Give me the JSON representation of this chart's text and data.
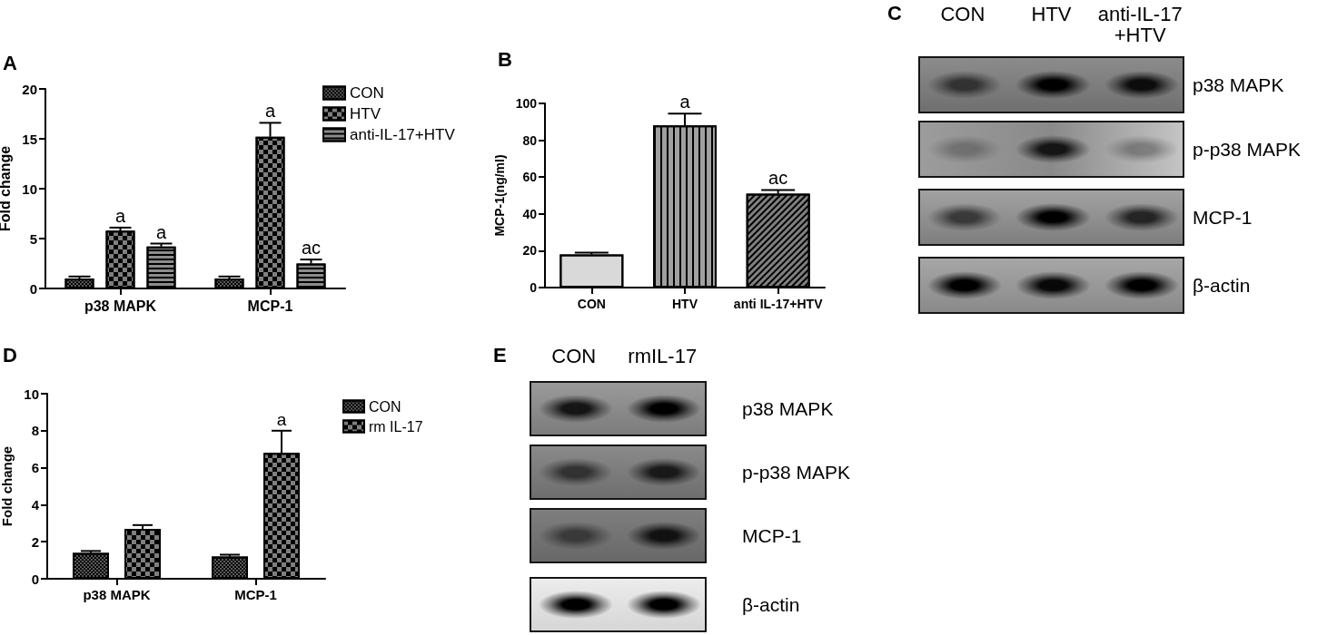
{
  "chart_data": [
    {
      "type": "bar",
      "title": "A",
      "ylabel": "Fold change",
      "categories": [
        "p38 MAPK",
        "MCP-1"
      ],
      "series": [
        {
          "name": "CON",
          "color": "#5a5a5a",
          "values": [
            1.0,
            1.0
          ],
          "errors": [
            0.2,
            0.2
          ]
        },
        {
          "name": "HTV",
          "color": "#7f7f7f",
          "values": [
            5.8,
            15.2
          ],
          "errors": [
            0.3,
            1.4
          ],
          "value_labels": [
            "a",
            "a"
          ]
        },
        {
          "name": "anti-IL-17+HTV",
          "color": "#8c8c8c",
          "values": [
            4.2,
            2.5
          ],
          "errors": [
            0.3,
            0.4
          ],
          "value_labels": [
            "a",
            "ac"
          ]
        }
      ],
      "ylim": [
        0,
        20
      ],
      "yticks": [
        0,
        5,
        10,
        15,
        20
      ],
      "grid": false,
      "legend": "top right"
    },
    {
      "type": "bar",
      "title": "B",
      "ylabel": "MCP-1(ng/ml)",
      "categories": [
        "CON",
        "HTV",
        "anti IL-17+HTV"
      ],
      "values": [
        18,
        88,
        51
      ],
      "errors": [
        1,
        6.5,
        2
      ],
      "colors": [
        "#d9d9d9",
        "#a0a0a0",
        "#808080"
      ],
      "value_labels": [
        null,
        "a",
        "ac"
      ],
      "ylim": [
        0,
        100
      ],
      "yticks": [
        0,
        20,
        40,
        60,
        80,
        100
      ],
      "grid": false
    },
    {
      "type": "other",
      "title": "C",
      "annotations": [
        "CON",
        "HTV",
        "anti-IL-17 +HTV",
        "p38 MAPK",
        "p-p38 MAPK",
        "MCP-1",
        "β-actin"
      ]
    },
    {
      "type": "bar",
      "title": "D",
      "ylabel": "Fold change",
      "categories": [
        "p38 MAPK",
        "MCP-1"
      ],
      "series": [
        {
          "name": "CON",
          "color": "#5a5a5a",
          "values": [
            1.4,
            1.2
          ],
          "errors": [
            0.1,
            0.1
          ]
        },
        {
          "name": "rm IL-17",
          "color": "#7f7f7f",
          "values": [
            2.7,
            6.8
          ],
          "errors": [
            0.2,
            1.2
          ],
          "value_labels": [
            null,
            "a"
          ]
        }
      ],
      "ylim": [
        0,
        10
      ],
      "yticks": [
        0,
        2,
        4,
        6,
        8,
        10
      ],
      "grid": false,
      "legend": "top right"
    },
    {
      "type": "other",
      "title": "E",
      "annotations": [
        "CON",
        "rmIL-17",
        "p38 MAPK",
        "p-p38 MAPK",
        "MCP-1",
        "β-actin"
      ]
    }
  ]
}
